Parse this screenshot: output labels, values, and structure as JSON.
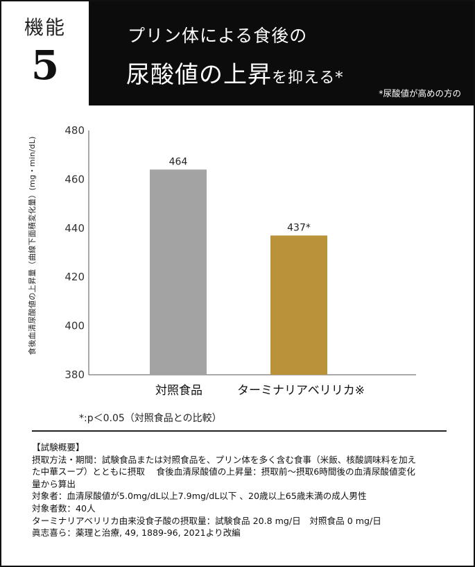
{
  "header": {
    "badge_label": "機能",
    "badge_number": "5",
    "title_line1": "プリン体による食後の",
    "title_line2_main": "尿酸値の上昇",
    "title_line2_suffix": "を抑える*",
    "note": "*尿酸値が高めの方の"
  },
  "colors": {
    "header_bg": "#0c0c0c",
    "control_bar": "#a3a3a3",
    "test_bar": "#b9923a"
  },
  "chart_data": {
    "type": "bar",
    "categories": [
      "対照食品",
      "ターミナリアベリリカ※"
    ],
    "values": [
      464,
      437
    ],
    "data_labels": [
      "464",
      "437*"
    ],
    "ylabel": "食後血清尿酸値の上昇量（曲線下面積変化量）(mg・min/dL)",
    "ylim": [
      380,
      480
    ],
    "yticks": [
      "380",
      "400",
      "420",
      "440",
      "460",
      "480"
    ],
    "grid": false
  },
  "footnote": "*:p＜0.05（対照食品との比較）",
  "summary": {
    "heading": "【試験概要】",
    "lines": [
      "摂取方法・期間：試験食品または対照食品を、プリン体を多く含む食事（米飯、核酸調味料を加え",
      "た中華スープ）とともに摂取　 食後血清尿酸値の上昇量：摂取前〜摂取6時間後の血清尿酸値変化",
      "量から算出",
      "対象者：血清尿酸値が5.0mg/dL以上7.9mg/dL以下 、20歳以上65歳未満の成人男性",
      "対象者数：40人",
      "ターミナリアベリリカ由来没食子酸の摂取量：試験食品 20.8 mg/日　対照食品 0 mg/日",
      "眞志喜ら：薬理と治療, 49, 1889-96, 2021より改編"
    ]
  }
}
